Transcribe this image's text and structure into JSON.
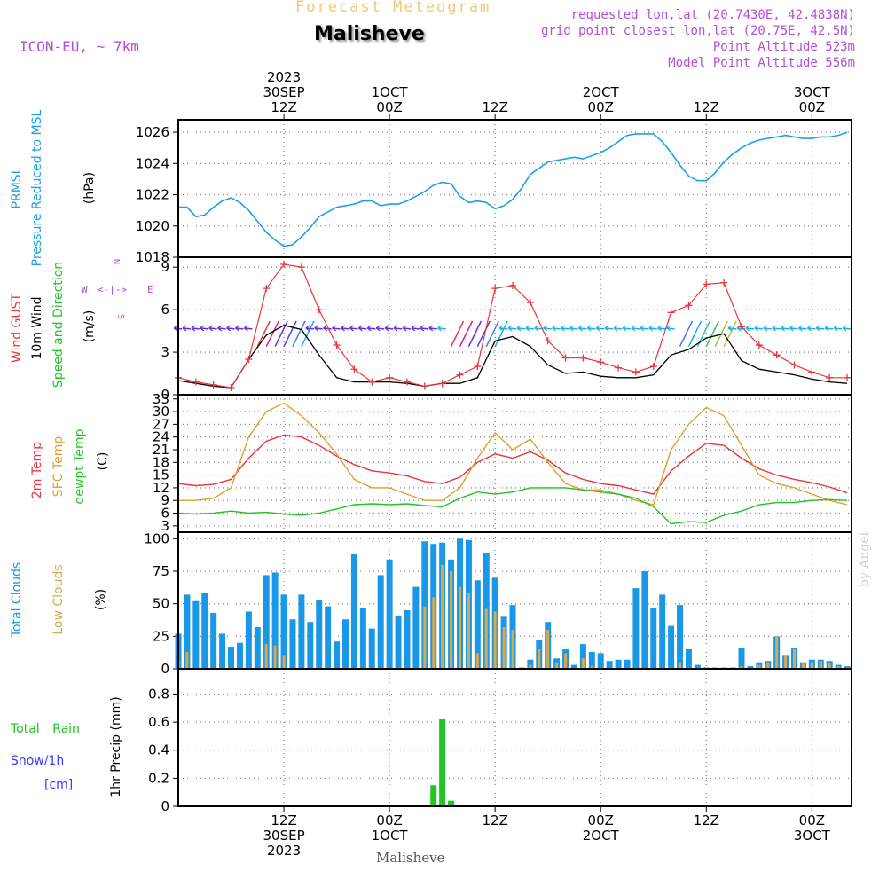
{
  "header": {
    "super_title": "Forecast Meteogram",
    "location": "Malisheve",
    "model": "ICON-EU, ~ 7km",
    "requested": "requested lon,lat (20.7430E, 42.4838N)",
    "grid_point": "grid point closest lon,lat (20.75E, 42.5N)",
    "point_altitude": "Point Altitude 523m",
    "model_altitude": "Model Point Altitude 556m",
    "credit": "by Angel",
    "bottom_location": "Malisheve"
  },
  "colors": {
    "pressure": "#1ca0e6",
    "gust": "#e8363c",
    "wind": "#000000",
    "temp2m": "#e8363c",
    "sfc": "#e0a030",
    "dewpt": "#22c422",
    "total_cloud": "#1a98e8",
    "low_cloud": "#d9a94a",
    "rain": "#22c422",
    "snow": "#3b3bff",
    "label_purple": "#b24fd8"
  },
  "time_axis": {
    "top_labels": [
      {
        "t": 12,
        "lines": [
          "2023",
          "30SEP",
          "12Z"
        ]
      },
      {
        "t": 24,
        "lines": [
          "1OCT",
          "00Z"
        ]
      },
      {
        "t": 36,
        "lines": [
          "12Z"
        ]
      },
      {
        "t": 48,
        "lines": [
          "2OCT",
          "00Z"
        ]
      },
      {
        "t": 60,
        "lines": [
          "12Z"
        ]
      },
      {
        "t": 72,
        "lines": [
          "3OCT",
          "00Z"
        ]
      }
    ],
    "bottom_labels": [
      {
        "t": 12,
        "lines": [
          "12Z",
          "30SEP",
          "2023"
        ]
      },
      {
        "t": 24,
        "lines": [
          "00Z",
          "1OCT"
        ]
      },
      {
        "t": 36,
        "lines": [
          "12Z"
        ]
      },
      {
        "t": 48,
        "lines": [
          "00Z",
          "2OCT"
        ]
      },
      {
        "t": 60,
        "lines": [
          "12Z"
        ]
      },
      {
        "t": 72,
        "lines": [
          "00Z",
          "3OCT"
        ]
      }
    ]
  },
  "chart_data": [
    {
      "type": "line",
      "panel": "pressure",
      "ylabel": [
        "PRMSL",
        "Pressure Reduced to MSL",
        "(hPa)"
      ],
      "ylim": [
        1018,
        1026.8
      ],
      "yticks": [
        1018,
        1020,
        1022,
        1024,
        1026
      ],
      "series": [
        {
          "name": "PRMSL",
          "x": [
            0,
            1,
            2,
            3,
            4,
            5,
            6,
            7,
            8,
            9,
            10,
            11,
            12,
            13,
            14,
            15,
            16,
            17,
            18,
            19,
            20,
            21,
            22,
            23,
            24,
            25,
            26,
            27,
            28,
            29,
            30,
            31,
            32,
            33,
            34,
            35,
            36,
            37,
            38,
            39,
            40,
            41,
            42,
            43,
            44,
            45,
            46,
            47,
            48,
            49,
            50,
            51,
            52,
            53,
            54,
            55,
            56,
            57,
            58,
            59,
            60,
            61,
            62,
            63,
            64,
            65,
            66,
            67,
            68,
            69,
            70,
            71,
            72,
            73,
            74,
            75,
            76
          ],
          "values": [
            1021.2,
            1021.2,
            1020.6,
            1020.7,
            1021.2,
            1021.6,
            1021.8,
            1021.5,
            1021.0,
            1020.3,
            1019.6,
            1019.1,
            1018.7,
            1018.8,
            1019.3,
            1019.9,
            1020.6,
            1020.9,
            1021.2,
            1021.3,
            1021.4,
            1021.6,
            1021.6,
            1021.3,
            1021.4,
            1021.4,
            1021.6,
            1021.9,
            1022.2,
            1022.6,
            1022.8,
            1022.7,
            1021.9,
            1021.5,
            1021.6,
            1021.5,
            1021.1,
            1021.3,
            1021.7,
            1022.4,
            1023.3,
            1023.7,
            1024.1,
            1024.2,
            1024.3,
            1024.4,
            1024.3,
            1024.5,
            1024.7,
            1025.0,
            1025.4,
            1025.8,
            1025.9,
            1025.9,
            1025.9,
            1025.4,
            1024.7,
            1023.9,
            1023.2,
            1022.9,
            1022.9,
            1023.4,
            1024.1,
            1024.6,
            1025.0,
            1025.3,
            1025.5,
            1025.6,
            1025.7,
            1025.8,
            1025.7,
            1025.6,
            1025.6,
            1025.7,
            1025.7,
            1025.8,
            1026.0
          ]
        }
      ]
    },
    {
      "type": "line",
      "panel": "wind",
      "ylabel": [
        "Wind GUST",
        "10m Wind",
        "Speed and Direction",
        "(m/s)"
      ],
      "compass": [
        "N",
        "W",
        "E",
        "S"
      ],
      "ylim": [
        0,
        9.7
      ],
      "yticks": [
        0,
        3,
        6,
        9
      ],
      "series": [
        {
          "name": "Wind GUST",
          "x": [
            0,
            2,
            4,
            6,
            8,
            10,
            12,
            14,
            16,
            18,
            20,
            22,
            24,
            26,
            28,
            30,
            32,
            34,
            36,
            38,
            40,
            42,
            44,
            46,
            48,
            50,
            52,
            54,
            56,
            58,
            60,
            62,
            64,
            66,
            68,
            70,
            72,
            74,
            76
          ],
          "values": [
            1.2,
            0.9,
            0.7,
            0.5,
            2.5,
            7.5,
            9.2,
            9.0,
            6.0,
            3.5,
            1.8,
            0.9,
            1.2,
            0.9,
            0.6,
            0.8,
            1.4,
            2.0,
            7.5,
            7.7,
            6.5,
            3.8,
            2.6,
            2.6,
            2.3,
            1.9,
            1.6,
            2.0,
            5.8,
            6.3,
            7.8,
            7.9,
            4.8,
            3.5,
            2.8,
            2.1,
            1.6,
            1.2,
            1.2
          ]
        },
        {
          "name": "10m Wind",
          "x": [
            0,
            2,
            4,
            6,
            8,
            10,
            12,
            14,
            16,
            18,
            20,
            22,
            24,
            26,
            28,
            30,
            32,
            34,
            36,
            38,
            40,
            42,
            44,
            46,
            48,
            50,
            52,
            54,
            56,
            58,
            60,
            62,
            64,
            66,
            68,
            70,
            72,
            74,
            76
          ],
          "values": [
            1.0,
            0.8,
            0.6,
            0.5,
            2.5,
            4.2,
            4.9,
            4.6,
            2.8,
            1.2,
            0.9,
            0.9,
            0.9,
            0.8,
            0.6,
            0.8,
            0.8,
            1.2,
            3.8,
            4.1,
            3.4,
            2.1,
            1.5,
            1.6,
            1.3,
            1.2,
            1.2,
            1.4,
            2.8,
            3.2,
            4.0,
            4.3,
            2.4,
            1.8,
            1.6,
            1.4,
            1.1,
            0.9,
            0.8
          ]
        }
      ]
    },
    {
      "type": "line",
      "panel": "temperature",
      "ylabel": [
        "2m Temp",
        "SFC Temp",
        "dewpt Temp",
        "(C)"
      ],
      "ylim": [
        1.5,
        34
      ],
      "yticks": [
        3,
        6,
        9,
        12,
        15,
        18,
        21,
        24,
        27,
        30,
        33
      ],
      "series": [
        {
          "name": "2m Temp",
          "x": [
            0,
            2,
            4,
            6,
            8,
            10,
            12,
            14,
            16,
            18,
            20,
            22,
            24,
            26,
            28,
            30,
            32,
            34,
            36,
            38,
            40,
            42,
            44,
            46,
            48,
            50,
            52,
            54,
            56,
            58,
            60,
            62,
            64,
            66,
            68,
            70,
            72,
            74,
            76
          ],
          "values": [
            13.0,
            12.5,
            12.8,
            14.0,
            19.0,
            23.0,
            24.5,
            24.0,
            22.0,
            19.5,
            17.5,
            16.0,
            15.5,
            14.8,
            13.5,
            13.0,
            14.5,
            18.0,
            20.0,
            19.0,
            20.5,
            18.5,
            15.5,
            14.0,
            13.0,
            12.5,
            11.5,
            10.5,
            16.0,
            19.5,
            22.5,
            22.0,
            19.0,
            16.5,
            15.0,
            14.0,
            13.2,
            12.2,
            10.8
          ]
        },
        {
          "name": "SFC Temp",
          "x": [
            0,
            2,
            4,
            6,
            8,
            10,
            12,
            14,
            16,
            18,
            20,
            22,
            24,
            26,
            28,
            30,
            32,
            34,
            36,
            38,
            40,
            42,
            44,
            46,
            48,
            50,
            52,
            54,
            56,
            58,
            60,
            62,
            64,
            66,
            68,
            70,
            72,
            74,
            76
          ],
          "values": [
            9.0,
            9.0,
            9.5,
            12.0,
            24.0,
            30.0,
            32.0,
            29.0,
            25.0,
            20.0,
            14.0,
            12.0,
            12.0,
            10.5,
            9.0,
            9.0,
            12.0,
            19.0,
            25.0,
            21.0,
            23.5,
            18.0,
            13.0,
            11.5,
            11.5,
            10.5,
            9.0,
            8.0,
            21.0,
            27.0,
            31.0,
            29.0,
            22.0,
            15.0,
            13.0,
            12.0,
            10.5,
            9.0,
            8.0
          ]
        },
        {
          "name": "dewpt Temp",
          "x": [
            0,
            2,
            4,
            6,
            8,
            10,
            12,
            14,
            16,
            18,
            20,
            22,
            24,
            26,
            28,
            30,
            32,
            34,
            36,
            38,
            40,
            42,
            44,
            46,
            48,
            50,
            52,
            54,
            56,
            58,
            60,
            62,
            64,
            66,
            68,
            70,
            72,
            74,
            76
          ],
          "values": [
            6.0,
            5.8,
            6.0,
            6.5,
            6.0,
            6.2,
            5.8,
            5.5,
            6.0,
            7.0,
            8.0,
            8.2,
            8.0,
            8.2,
            7.8,
            7.5,
            9.5,
            11.0,
            10.5,
            11.0,
            12.0,
            12.0,
            12.0,
            11.5,
            11.0,
            10.5,
            9.5,
            7.5,
            3.5,
            4.0,
            3.8,
            5.5,
            6.5,
            8.0,
            8.5,
            8.5,
            9.0,
            9.2,
            9.0
          ]
        }
      ]
    },
    {
      "type": "bar",
      "panel": "clouds",
      "ylabel": [
        "Total Clouds",
        "Low Clouds",
        "(%)"
      ],
      "ylim": [
        0,
        105
      ],
      "yticks": [
        0,
        25,
        50,
        75,
        100
      ],
      "series": [
        {
          "name": "Total Clouds",
          "x": [
            0,
            1,
            2,
            3,
            4,
            5,
            6,
            7,
            8,
            9,
            10,
            11,
            12,
            13,
            14,
            15,
            16,
            17,
            18,
            19,
            20,
            21,
            22,
            23,
            24,
            25,
            26,
            27,
            28,
            29,
            30,
            31,
            32,
            33,
            34,
            35,
            36,
            37,
            38,
            39,
            40,
            41,
            42,
            43,
            44,
            45,
            46,
            47,
            48,
            49,
            50,
            51,
            52,
            53,
            54,
            55,
            56,
            57,
            58,
            59,
            60,
            61,
            62,
            63,
            64,
            65,
            66,
            67,
            68,
            69,
            70,
            71,
            72,
            73,
            74,
            75,
            76
          ],
          "values": [
            27,
            57,
            52,
            58,
            43,
            27,
            17,
            20,
            44,
            32,
            72,
            74,
            57,
            38,
            57,
            36,
            53,
            48,
            21,
            38,
            88,
            47,
            31,
            72,
            84,
            41,
            45,
            63,
            98,
            96,
            97,
            84,
            100,
            99,
            68,
            89,
            70,
            40,
            49,
            1,
            7,
            22,
            36,
            8,
            15,
            3,
            19,
            13,
            12,
            6,
            7,
            7,
            62,
            75,
            47,
            57,
            33,
            49,
            15,
            3,
            1,
            1,
            1,
            1,
            16,
            2,
            5,
            6,
            25,
            10,
            16,
            5,
            7,
            7,
            6,
            3,
            2
          ]
        },
        {
          "name": "Low Clouds",
          "x": [
            0,
            1,
            2,
            3,
            4,
            5,
            6,
            7,
            8,
            9,
            10,
            11,
            12,
            13,
            14,
            15,
            16,
            17,
            18,
            19,
            20,
            21,
            22,
            23,
            24,
            25,
            26,
            27,
            28,
            29,
            30,
            31,
            32,
            33,
            34,
            35,
            36,
            37,
            38,
            39,
            40,
            41,
            42,
            43,
            44,
            45,
            46,
            47,
            48,
            49,
            50,
            51,
            52,
            53,
            54,
            55,
            56,
            57,
            58,
            59,
            60,
            61,
            62,
            63,
            64,
            65,
            66,
            67,
            68,
            69,
            70,
            71,
            72,
            73,
            74,
            75,
            76
          ],
          "values": [
            6,
            13,
            0,
            0,
            0,
            0,
            0,
            0,
            0,
            0,
            19,
            18,
            10,
            0,
            0,
            0,
            0,
            0,
            0,
            0,
            0,
            0,
            0,
            0,
            0,
            0,
            0,
            0,
            48,
            55,
            80,
            75,
            63,
            58,
            12,
            46,
            44,
            32,
            30,
            0,
            3,
            15,
            30,
            5,
            12,
            0,
            8,
            2,
            0,
            0,
            0,
            0,
            0,
            0,
            0,
            0,
            0,
            5,
            0,
            0,
            0,
            0,
            0,
            0,
            2,
            0,
            3,
            5,
            25,
            10,
            15,
            5,
            5,
            6,
            4,
            2,
            1
          ]
        }
      ]
    },
    {
      "type": "bar",
      "panel": "precipitation",
      "ylabel": [
        "1hr Precip (mm)"
      ],
      "legend": [
        "Total Rain",
        "Snow/1h",
        "[cm]"
      ],
      "ylim": [
        0,
        0.98
      ],
      "yticks": [
        0,
        0.2,
        0.4,
        0.6,
        0.8
      ],
      "ytick_labels": [
        "0",
        "0.2",
        "0.4",
        "0.6",
        "0.8"
      ],
      "series": [
        {
          "name": "Total Rain",
          "x": [
            29,
            30,
            31
          ],
          "values": [
            0.15,
            0.62,
            0.04
          ]
        }
      ]
    }
  ]
}
